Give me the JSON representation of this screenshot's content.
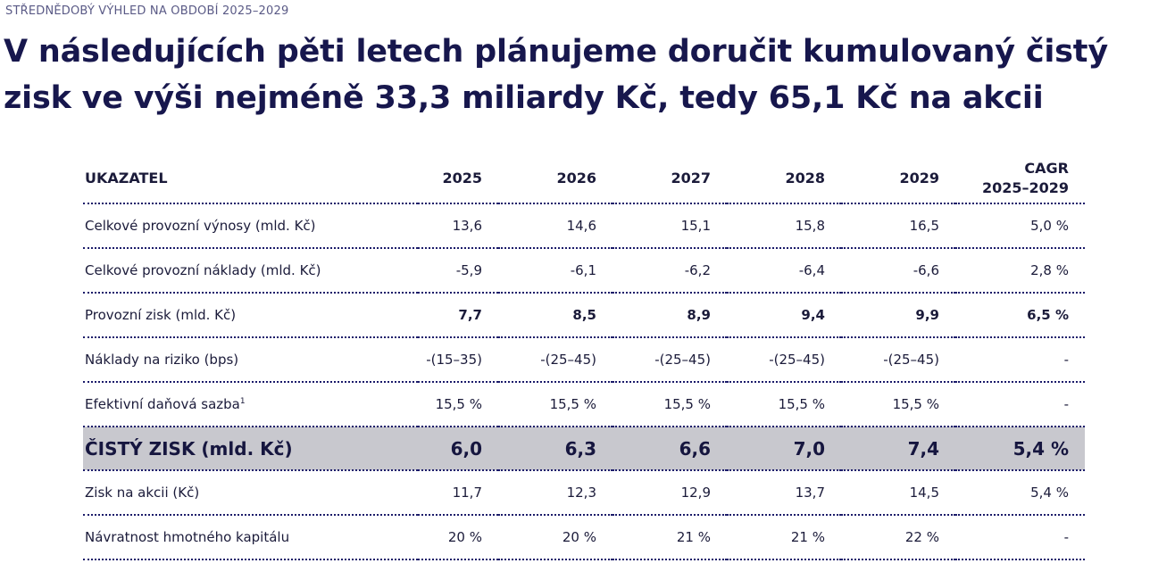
{
  "header": {
    "overline": "STŘEDNĚDOBÝ VÝHLED NA OBDOBÍ 2025–2029",
    "headline": "V následujících pěti letech plánujeme doručit kumulovaný čistý zisk ve výši nejméně 33,3 miliardy Kč, tedy 65,1 Kč na akcii"
  },
  "table": {
    "columns": {
      "indicator": "UKAZATEL",
      "y2025": "2025",
      "y2026": "2026",
      "y2027": "2027",
      "y2028": "2028",
      "y2029": "2029",
      "cagr_line1": "CAGR",
      "cagr_line2": "2025–2029"
    },
    "rows": [
      {
        "label": "Celkové provozní výnosy (mld. Kč)",
        "footnote": "",
        "values": [
          "13,6",
          "14,6",
          "15,1",
          "15,8",
          "16,5",
          "5,0 %"
        ]
      },
      {
        "label": "Celkové provozní náklady (mld. Kč)",
        "footnote": "",
        "values": [
          "-5,9",
          "-6,1",
          "-6,2",
          "-6,4",
          "-6,6",
          "2,8 %"
        ]
      },
      {
        "label": "Provozní zisk (mld. Kč)",
        "footnote": "",
        "values": [
          "7,7",
          "8,5",
          "8,9",
          "9,4",
          "9,9",
          "6,5 %"
        ]
      },
      {
        "label": "Náklady na riziko (bps)",
        "footnote": "",
        "values": [
          "-(15–35)",
          "-(25–45)",
          "-(25–45)",
          "-(25–45)",
          "-(25–45)",
          "-"
        ]
      },
      {
        "label": "Efektivní daňová sazba",
        "footnote": "1",
        "values": [
          "15,5 %",
          "15,5 %",
          "15,5 %",
          "15,5 %",
          "15,5 %",
          "-"
        ]
      },
      {
        "label": "ČISTÝ ZISK (mld. Kč)",
        "footnote": "",
        "values": [
          "6,0",
          "6,3",
          "6,6",
          "7,0",
          "7,4",
          "5,4 %"
        ]
      },
      {
        "label": "Zisk na akcii (Kč)",
        "footnote": "",
        "values": [
          "11,7",
          "12,3",
          "12,9",
          "13,7",
          "14,5",
          "5,4 %"
        ]
      },
      {
        "label": "Návratnost hmotného kapitálu",
        "footnote": "",
        "values": [
          "20 %",
          "20 %",
          "21 %",
          "21 %",
          "22 %",
          "-"
        ]
      }
    ]
  }
}
